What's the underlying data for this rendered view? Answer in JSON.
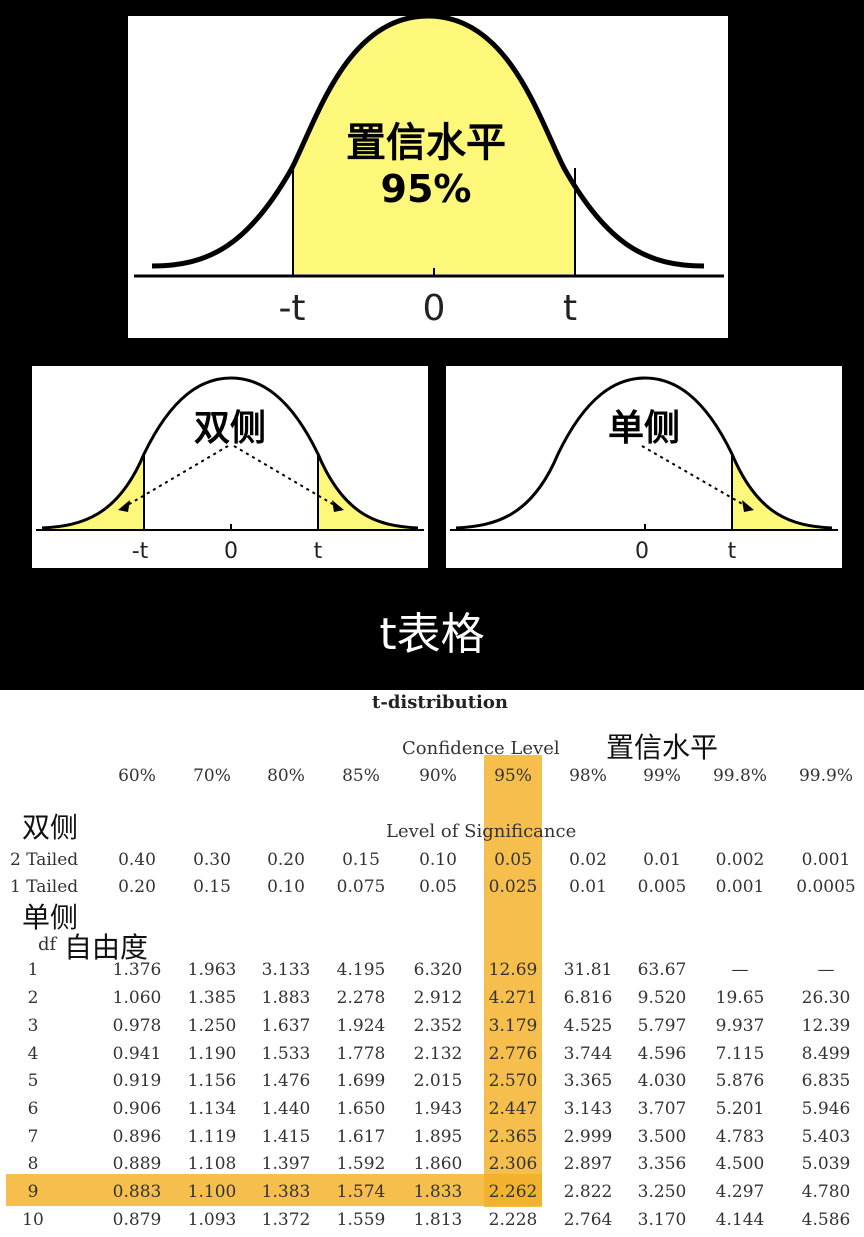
{
  "diagram": {
    "main": {
      "caption_line1": "置信水平",
      "caption_line2": "95%",
      "label_neg_t": "-t",
      "label_zero": "0",
      "label_t": "t"
    },
    "two_tailed": {
      "caption": "双侧",
      "label_neg_t": "-t",
      "label_zero": "0",
      "label_t": "t"
    },
    "one_tailed": {
      "caption": "单侧",
      "label_zero": "0",
      "label_t": "t"
    },
    "section_title": "t表格",
    "colors": {
      "fill": "#fdf77a",
      "highlight": "#f3b026",
      "background": "#000000"
    }
  },
  "table": {
    "title": "t-distribution",
    "confidence_header": "Confidence Level",
    "confidence_note": "置信水平",
    "confidence_levels": [
      "60%",
      "70%",
      "80%",
      "85%",
      "90%",
      "95%",
      "98%",
      "99%",
      "99.8%",
      "99.9%"
    ],
    "significance_header": "Level of Significance",
    "two_tailed_note": "双侧",
    "one_tailed_note": "单侧",
    "two_tailed": {
      "label": "2 Tailed",
      "values": [
        "0.40",
        "0.30",
        "0.20",
        "0.15",
        "0.10",
        "0.05",
        "0.02",
        "0.01",
        "0.002",
        "0.001"
      ]
    },
    "one_tailed": {
      "label": "1 Tailed",
      "values": [
        "0.20",
        "0.15",
        "0.10",
        "0.075",
        "0.05",
        "0.025",
        "0.01",
        "0.005",
        "0.001",
        "0.0005"
      ]
    },
    "df_label": "df",
    "df_note": "自由度",
    "rows": [
      {
        "df": "1",
        "values": [
          "1.376",
          "1.963",
          "3.133",
          "4.195",
          "6.320",
          "12.69",
          "31.81",
          "63.67",
          "—",
          "—"
        ]
      },
      {
        "df": "2",
        "values": [
          "1.060",
          "1.385",
          "1.883",
          "2.278",
          "2.912",
          "4.271",
          "6.816",
          "9.520",
          "19.65",
          "26.30"
        ]
      },
      {
        "df": "3",
        "values": [
          "0.978",
          "1.250",
          "1.637",
          "1.924",
          "2.352",
          "3.179",
          "4.525",
          "5.797",
          "9.937",
          "12.39"
        ]
      },
      {
        "df": "4",
        "values": [
          "0.941",
          "1.190",
          "1.533",
          "1.778",
          "2.132",
          "2.776",
          "3.744",
          "4.596",
          "7.115",
          "8.499"
        ]
      },
      {
        "df": "5",
        "values": [
          "0.919",
          "1.156",
          "1.476",
          "1.699",
          "2.015",
          "2.570",
          "3.365",
          "4.030",
          "5.876",
          "6.835"
        ]
      },
      {
        "df": "6",
        "values": [
          "0.906",
          "1.134",
          "1.440",
          "1.650",
          "1.943",
          "2.447",
          "3.143",
          "3.707",
          "5.201",
          "5.946"
        ]
      },
      {
        "df": "7",
        "values": [
          "0.896",
          "1.119",
          "1.415",
          "1.617",
          "1.895",
          "2.365",
          "2.999",
          "3.500",
          "4.783",
          "5.403"
        ]
      },
      {
        "df": "8",
        "values": [
          "0.889",
          "1.108",
          "1.397",
          "1.592",
          "1.860",
          "2.306",
          "2.897",
          "3.356",
          "4.500",
          "5.039"
        ]
      },
      {
        "df": "9",
        "values": [
          "0.883",
          "1.100",
          "1.383",
          "1.574",
          "1.833",
          "2.262",
          "2.822",
          "3.250",
          "4.297",
          "4.780"
        ]
      },
      {
        "df": "10",
        "values": [
          "0.879",
          "1.093",
          "1.372",
          "1.559",
          "1.813",
          "2.228",
          "2.764",
          "3.170",
          "4.144",
          "4.586"
        ]
      }
    ]
  }
}
